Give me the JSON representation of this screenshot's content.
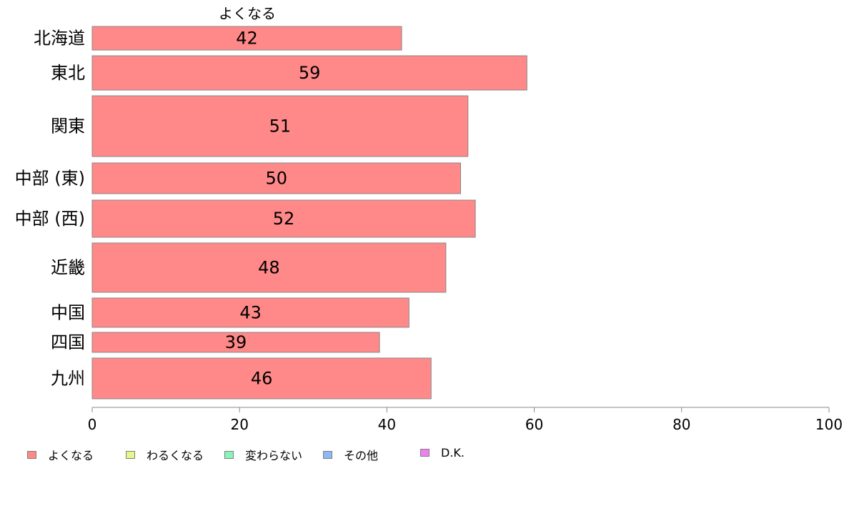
{
  "chart_data": {
    "type": "bar",
    "orientation": "horizontal",
    "column_header": "よくなる",
    "categories": [
      "北海道",
      "東北",
      "関東",
      "中部 (東)",
      "中部 (西)",
      "近畿",
      "中国",
      "四国",
      "九州"
    ],
    "series": [
      {
        "name": "よくなる",
        "values": [
          42,
          59,
          51,
          50,
          52,
          48,
          43,
          39,
          46
        ],
        "color": "#ff8888"
      }
    ],
    "value_labels": [
      "42",
      "59",
      "51",
      "50",
      "52",
      "48",
      "43",
      "39",
      "46"
    ],
    "xlim": [
      0,
      100
    ],
    "xticks": [
      0,
      20,
      40,
      60,
      80,
      100
    ],
    "grid": false,
    "legend_position": "bottom-left"
  },
  "legend": [
    {
      "label": "よくなる",
      "color": "#ff8888"
    },
    {
      "label": "わるくなる",
      "color": "#e8f58a"
    },
    {
      "label": "変わらない",
      "color": "#86f5b6"
    },
    {
      "label": "その他",
      "color": "#8ab9f5"
    },
    {
      "label": "D.K.",
      "color": "#f080f0"
    }
  ]
}
